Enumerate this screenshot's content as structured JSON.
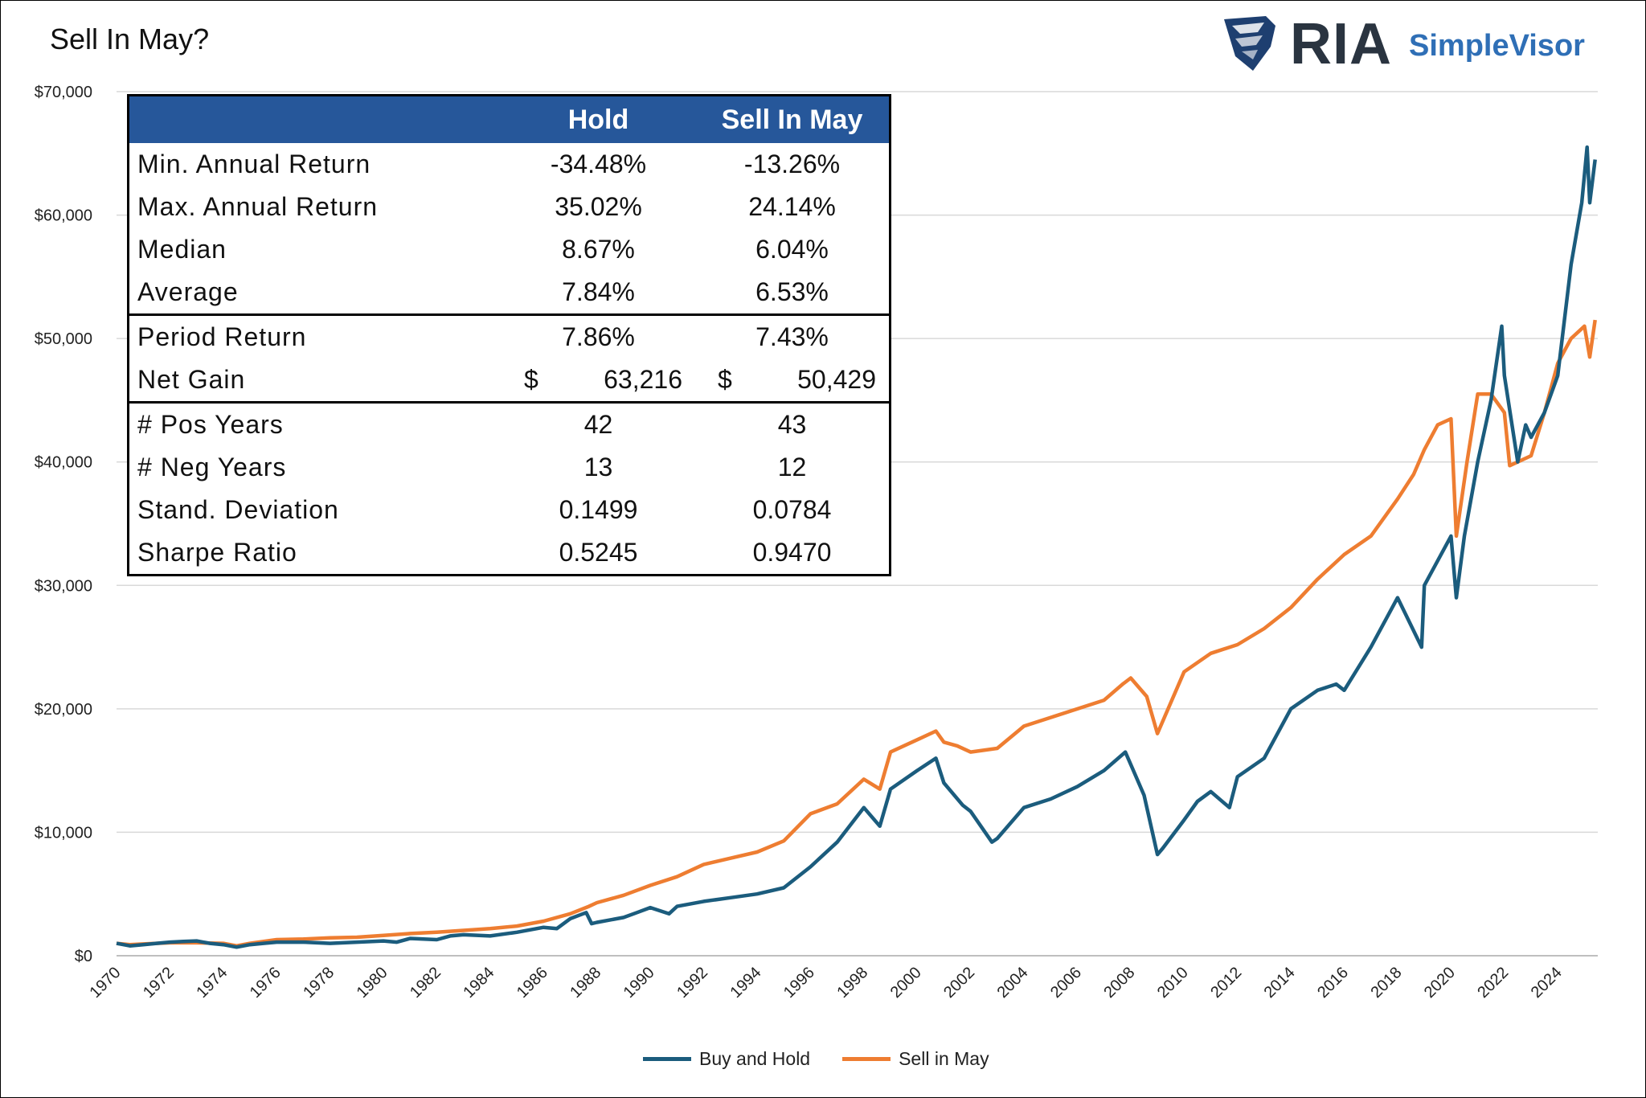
{
  "title": "Sell In May?",
  "logo": {
    "brand": "RIA",
    "product": "SimpleVisor",
    "icon": "eagle-shield-icon"
  },
  "colors": {
    "buy_hold": "#1b5c7d",
    "sell_may": "#ee7d31",
    "header": "#26579a",
    "grid": "#d9d9d9"
  },
  "table": {
    "headers": [
      "",
      "Hold",
      "Sell In May"
    ],
    "rows": [
      {
        "label": "Min. Annual Return",
        "hold": "-34.48%",
        "sim": "-13.26%"
      },
      {
        "label": "Max. Annual Return",
        "hold": "35.02%",
        "sim": "24.14%"
      },
      {
        "label": "Median",
        "hold": "8.67%",
        "sim": "6.04%"
      },
      {
        "label": "Average",
        "hold": "7.84%",
        "sim": "6.53%"
      },
      {
        "label": "Period Return",
        "hold": "7.86%",
        "sim": "7.43%"
      },
      {
        "label": "Net Gain",
        "hold_cur": "$",
        "hold": "63,216",
        "sim_cur": "$",
        "sim": "50,429"
      },
      {
        "label": "# Pos Years",
        "hold": "42",
        "sim": "43"
      },
      {
        "label": "# Neg Years",
        "hold": "13",
        "sim": "12"
      },
      {
        "label": "Stand. Deviation",
        "hold": "0.1499",
        "sim": "0.0784"
      },
      {
        "label": "Sharpe Ratio",
        "hold": "0.5245",
        "sim": "0.9470"
      }
    ]
  },
  "chart_data": {
    "type": "line",
    "title": "Sell In May?",
    "xlabel": "",
    "ylabel": "",
    "xlim": [
      1970,
      2025.5
    ],
    "ylim": [
      0,
      70000
    ],
    "y_ticks": [
      "$0",
      "$10,000",
      "$20,000",
      "$30,000",
      "$40,000",
      "$50,000",
      "$60,000",
      "$70,000"
    ],
    "x_ticks": [
      "1970",
      "1972",
      "1974",
      "1976",
      "1978",
      "1980",
      "1982",
      "1984",
      "1986",
      "1988",
      "1990",
      "1992",
      "1994",
      "1996",
      "1998",
      "2000",
      "2002",
      "2004",
      "2006",
      "2008",
      "2010",
      "2012",
      "2014",
      "2016",
      "2018",
      "2020",
      "2022",
      "2024"
    ],
    "legend_position": "bottom",
    "series": [
      {
        "name": "Buy and Hold",
        "x": [
          1970,
          1970.5,
          1971,
          1971.5,
          1972,
          1972.5,
          1973,
          1973.5,
          1974,
          1974.5,
          1975,
          1975.5,
          1976,
          1977,
          1978,
          1979,
          1980,
          1980.5,
          1981,
          1982,
          1982.5,
          1983,
          1984,
          1985,
          1986,
          1986.5,
          1987,
          1987.6,
          1987.8,
          1988,
          1989,
          1989.5,
          1990,
          1990.7,
          1991,
          1992,
          1993,
          1994,
          1995,
          1996,
          1997,
          1998,
          1998.6,
          1999,
          2000,
          2000.7,
          2001,
          2001.7,
          2002,
          2002.8,
          2003,
          2004,
          2005,
          2006,
          2007,
          2007.8,
          2008,
          2008.5,
          2009,
          2009.2,
          2010,
          2010.5,
          2011,
          2011.7,
          2012,
          2013,
          2014,
          2015,
          2015.7,
          2016,
          2017,
          2018,
          2018.9,
          2019,
          2020,
          2020.2,
          2020.5,
          2021,
          2021.5,
          2021.9,
          2022,
          2022.5,
          2022.8,
          2023,
          2023.5,
          2024,
          2024.5,
          2024.9,
          2025.1,
          2025.2,
          2025.4
        ],
        "values": [
          1000,
          800,
          900,
          1000,
          1100,
          1150,
          1200,
          1000,
          900,
          700,
          900,
          1000,
          1100,
          1100,
          1000,
          1100,
          1200,
          1100,
          1400,
          1300,
          1600,
          1700,
          1600,
          1900,
          2300,
          2200,
          3000,
          3500,
          2600,
          2700,
          3100,
          3500,
          3900,
          3400,
          4000,
          4400,
          4700,
          5000,
          5500,
          7200,
          9200,
          12000,
          10500,
          13500,
          15000,
          16000,
          14000,
          12200,
          11700,
          9200,
          9500,
          12000,
          12700,
          13700,
          15000,
          16500,
          15500,
          13000,
          8200,
          8700,
          11000,
          12500,
          13300,
          12000,
          14500,
          16000,
          20000,
          21500,
          22000,
          21500,
          25000,
          29000,
          25000,
          30000,
          34000,
          29000,
          34000,
          40000,
          45000,
          51000,
          47000,
          40000,
          43000,
          42000,
          44000,
          47000,
          56000,
          61000,
          65500,
          61000,
          64500
        ]
      },
      {
        "name": "Sell in May",
        "x": [
          1970,
          1970.5,
          1971,
          1972,
          1973,
          1974,
          1974.5,
          1975,
          1976,
          1977,
          1978,
          1979,
          1980,
          1981,
          1982,
          1983,
          1984,
          1985,
          1986,
          1987,
          1987.7,
          1988,
          1989,
          1990,
          1991,
          1992,
          1993,
          1994,
          1995,
          1996,
          1997,
          1998,
          1998.6,
          1999,
          2000,
          2000.7,
          2001,
          2001.5,
          2002,
          2003,
          2004,
          2005,
          2006,
          2007,
          2007.7,
          2008,
          2008.6,
          2009,
          2010,
          2011,
          2012,
          2013,
          2014,
          2015,
          2016,
          2017,
          2018,
          2018.6,
          2019,
          2019.5,
          2020,
          2020.2,
          2020.6,
          2021,
          2021.5,
          2022,
          2022.2,
          2023,
          2023.5,
          2024,
          2024.5,
          2025,
          2025.2,
          2025.4
        ],
        "values": [
          1000,
          900,
          950,
          1050,
          1050,
          1000,
          800,
          1000,
          1300,
          1350,
          1450,
          1500,
          1650,
          1800,
          1900,
          2050,
          2200,
          2400,
          2800,
          3400,
          4000,
          4300,
          4900,
          5700,
          6400,
          7400,
          7900,
          8400,
          9300,
          11500,
          12300,
          14300,
          13500,
          16500,
          17500,
          18200,
          17300,
          17000,
          16500,
          16800,
          18600,
          19300,
          20000,
          20700,
          22000,
          22500,
          21000,
          18000,
          23000,
          24500,
          25200,
          26500,
          28200,
          30500,
          32500,
          34000,
          37000,
          39000,
          41000,
          43000,
          43500,
          34000,
          40000,
          45500,
          45500,
          44000,
          39700,
          40500,
          44000,
          48000,
          50000,
          51000,
          48500,
          51500
        ]
      }
    ]
  },
  "legend": {
    "buy_hold": "Buy and Hold",
    "sell_may": "Sell in May"
  }
}
